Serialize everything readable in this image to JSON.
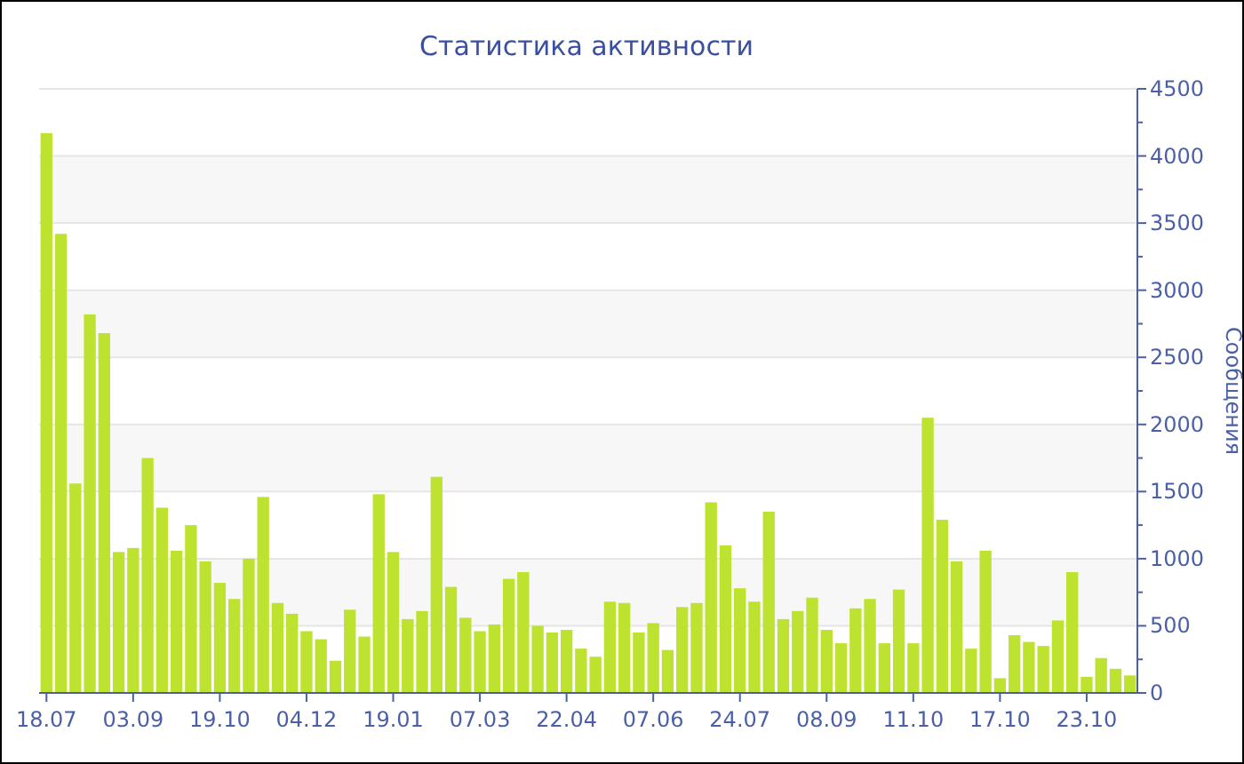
{
  "chart_data": {
    "type": "bar",
    "title": "Статистика активности",
    "ylabel": "Сообщения",
    "categories": [
      "18.07",
      null,
      null,
      null,
      null,
      null,
      "03.09",
      null,
      null,
      null,
      null,
      null,
      "19.10",
      null,
      null,
      null,
      null,
      null,
      "04.12",
      null,
      null,
      null,
      null,
      null,
      "19.01",
      null,
      null,
      null,
      null,
      null,
      "07.03",
      null,
      null,
      null,
      null,
      null,
      "22.04",
      null,
      null,
      null,
      null,
      null,
      "07.06",
      null,
      null,
      null,
      null,
      null,
      "24.07",
      null,
      null,
      null,
      null,
      null,
      "08.09",
      null,
      null,
      null,
      null,
      null,
      "11.10",
      null,
      null,
      null,
      null,
      null,
      "17.10",
      null,
      null,
      null,
      null,
      null,
      "23.10",
      null,
      null,
      null
    ],
    "values": [
      4170,
      3420,
      1560,
      2820,
      2680,
      1050,
      1080,
      1750,
      1380,
      1060,
      1250,
      980,
      820,
      700,
      1000,
      1460,
      670,
      590,
      460,
      400,
      240,
      620,
      420,
      1480,
      1050,
      550,
      610,
      1610,
      790,
      560,
      460,
      510,
      850,
      900,
      500,
      450,
      470,
      330,
      270,
      680,
      670,
      450,
      520,
      320,
      640,
      670,
      1420,
      1100,
      780,
      680,
      1350,
      550,
      610,
      710,
      470,
      370,
      630,
      700,
      370,
      770,
      370,
      2050,
      1290,
      980,
      330,
      1060,
      110,
      430,
      380,
      350,
      540,
      900,
      120,
      260,
      180,
      130
    ],
    "color": "#bde22f",
    "ylim": [
      0,
      4500
    ],
    "yticks": [
      0,
      500,
      1000,
      1500,
      2000,
      2500,
      3000,
      3500,
      4000,
      4500
    ],
    "grid": "y"
  }
}
